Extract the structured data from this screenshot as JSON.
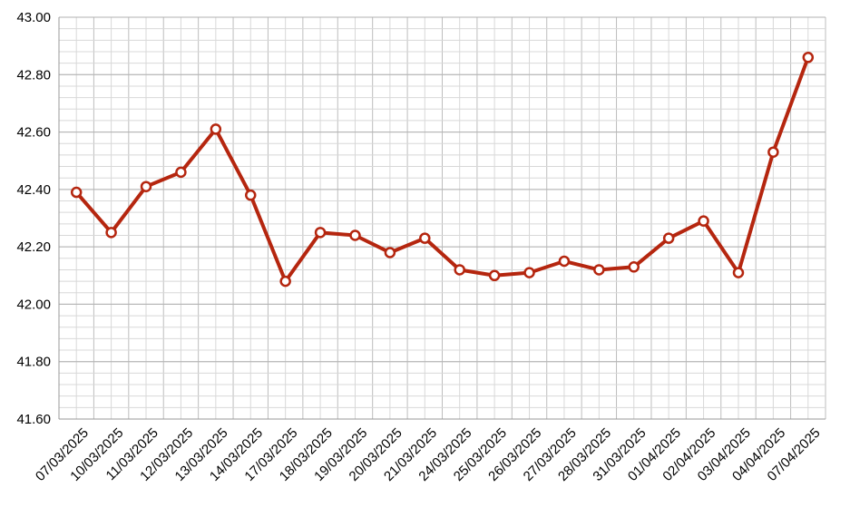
{
  "chart_data": {
    "type": "line",
    "categories": [
      "07/03/2025",
      "10/03/2025",
      "11/03/2025",
      "12/03/2025",
      "13/03/2025",
      "14/03/2025",
      "17/03/2025",
      "18/03/2025",
      "19/03/2025",
      "20/03/2025",
      "21/03/2025",
      "24/03/2025",
      "25/03/2025",
      "26/03/2025",
      "27/03/2025",
      "28/03/2025",
      "31/03/2025",
      "01/04/2025",
      "02/04/2025",
      "03/04/2025",
      "04/04/2025",
      "07/04/2025"
    ],
    "series": [
      {
        "color": "#b5260f",
        "values": [
          42.39,
          42.25,
          42.41,
          42.46,
          42.61,
          42.38,
          42.08,
          42.25,
          42.24,
          42.18,
          42.23,
          42.12,
          42.1,
          42.11,
          42.15,
          42.12,
          42.13,
          42.23,
          42.29,
          42.11,
          42.53,
          42.86
        ]
      }
    ],
    "ylim": [
      41.6,
      43.0
    ],
    "yticks": [
      {
        "value": 41.6,
        "label": "41.60"
      },
      {
        "value": 41.8,
        "label": "41.80"
      },
      {
        "value": 42.0,
        "label": "42.00"
      },
      {
        "value": 42.2,
        "label": "42.20"
      },
      {
        "value": 42.4,
        "label": "42.40"
      },
      {
        "value": 42.6,
        "label": "42.60"
      },
      {
        "value": 42.8,
        "label": "42.80"
      },
      {
        "value": 43.0,
        "label": "43.00"
      }
    ],
    "grid": true
  }
}
